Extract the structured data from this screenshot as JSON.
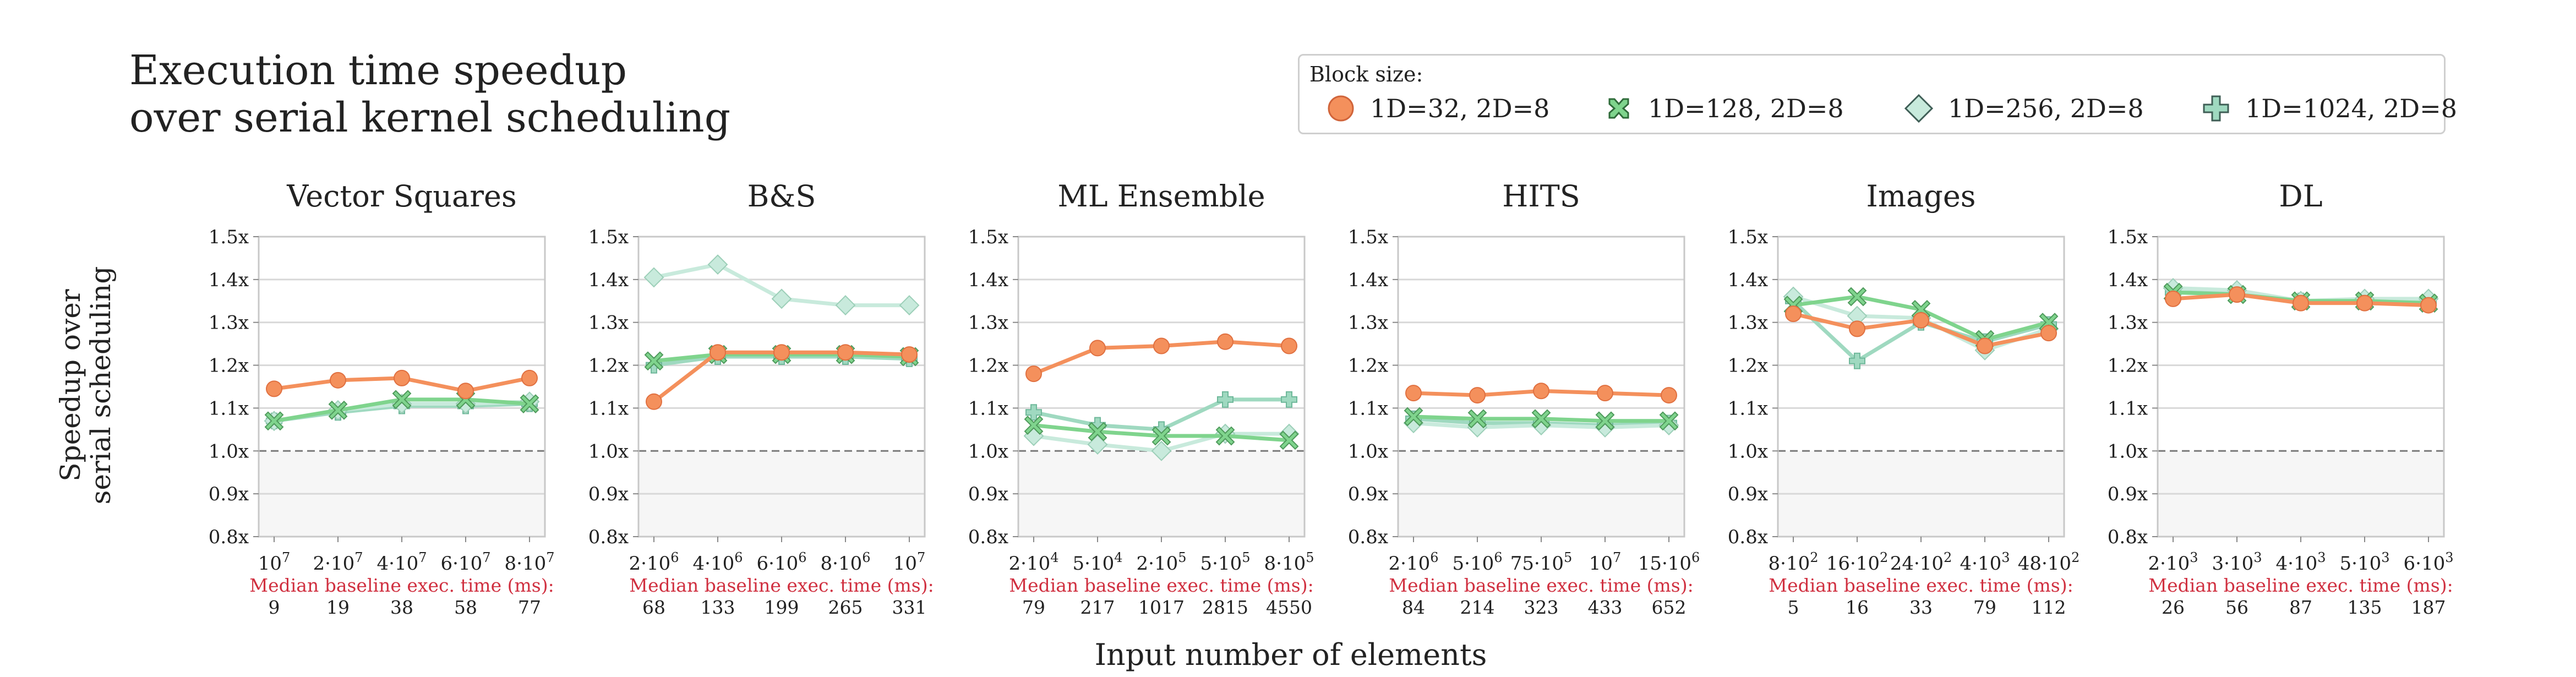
{
  "title_lines": [
    "Execution time speedup",
    "over serial kernel scheduling"
  ],
  "legend": {
    "title": "Block size:",
    "items": [
      {
        "label": "1D=32, 2D=8",
        "color": "#f4905c",
        "marker": "circle",
        "stroke": "#f4905c"
      },
      {
        "label": "1D=128, 2D=8",
        "color": "#7fd48d",
        "marker": "x",
        "stroke": "#2f6b3a"
      },
      {
        "label": "1D=256, 2D=8",
        "color": "#c8eadc",
        "marker": "diamond",
        "stroke": "#3f5e56"
      },
      {
        "label": "1D=1024, 2D=8",
        "color": "#9fd9c0",
        "marker": "plus",
        "stroke": "#3f5e56"
      }
    ]
  },
  "y_axis": {
    "label_lines": [
      "Speedup over",
      "serial scheduling"
    ],
    "ticks": [
      "1.5x",
      "1.4x",
      "1.3x",
      "1.2x",
      "1.1x",
      "1.0x",
      "0.9x",
      "0.8x"
    ],
    "tick_values": [
      1.5,
      1.4,
      1.3,
      1.2,
      1.1,
      1.0,
      0.9,
      0.8
    ],
    "ylim": [
      0.8,
      1.5
    ],
    "baseline": 1.0
  },
  "x_axis_label": "Input number of elements",
  "median_label": "Median baseline exec. time (ms):",
  "chart_data": [
    {
      "type": "line",
      "title": "Vector Squares",
      "categories": [
        "10^7",
        "2·10^7",
        "4·10^7",
        "6·10^7",
        "8·10^7"
      ],
      "median_times": [
        "9",
        "19",
        "38",
        "58",
        "77"
      ],
      "series": [
        {
          "name": "1D=32, 2D=8",
          "values": [
            1.145,
            1.165,
            1.17,
            1.14,
            1.17
          ]
        },
        {
          "name": "1D=128, 2D=8",
          "values": [
            1.07,
            1.095,
            1.12,
            1.12,
            1.11
          ]
        },
        {
          "name": "1D=256, 2D=8",
          "values": [
            1.07,
            1.095,
            1.11,
            1.11,
            1.115
          ]
        },
        {
          "name": "1D=1024, 2D=8",
          "values": [
            1.07,
            1.09,
            1.105,
            1.105,
            1.11
          ]
        }
      ]
    },
    {
      "type": "line",
      "title": "B&S",
      "categories": [
        "2·10^6",
        "4·10^6",
        "6·10^6",
        "8·10^6",
        "10^7"
      ],
      "median_times": [
        "68",
        "133",
        "199",
        "265",
        "331"
      ],
      "series": [
        {
          "name": "1D=32, 2D=8",
          "values": [
            1.115,
            1.23,
            1.23,
            1.23,
            1.225
          ]
        },
        {
          "name": "1D=128, 2D=8",
          "values": [
            1.21,
            1.225,
            1.225,
            1.225,
            1.22
          ]
        },
        {
          "name": "1D=256, 2D=8",
          "values": [
            1.405,
            1.435,
            1.355,
            1.34,
            1.34
          ]
        },
        {
          "name": "1D=1024, 2D=8",
          "values": [
            1.2,
            1.22,
            1.22,
            1.22,
            1.215
          ]
        }
      ]
    },
    {
      "type": "line",
      "title": "ML Ensemble",
      "categories": [
        "2·10^4",
        "5·10^4",
        "2·10^5",
        "5·10^5",
        "8·10^5"
      ],
      "median_times": [
        "79",
        "217",
        "1017",
        "2815",
        "4550"
      ],
      "series": [
        {
          "name": "1D=32, 2D=8",
          "values": [
            1.18,
            1.24,
            1.245,
            1.255,
            1.245
          ]
        },
        {
          "name": "1D=128, 2D=8",
          "values": [
            1.06,
            1.045,
            1.035,
            1.035,
            1.025
          ]
        },
        {
          "name": "1D=256, 2D=8",
          "values": [
            1.035,
            1.015,
            1.0,
            1.04,
            1.04
          ]
        },
        {
          "name": "1D=1024, 2D=8",
          "values": [
            1.09,
            1.06,
            1.05,
            1.12,
            1.12
          ]
        }
      ]
    },
    {
      "type": "line",
      "title": "HITS",
      "categories": [
        "2·10^6",
        "5·10^6",
        "75·10^5",
        "10^7",
        "15·10^6"
      ],
      "median_times": [
        "84",
        "214",
        "323",
        "433",
        "652"
      ],
      "series": [
        {
          "name": "1D=32, 2D=8",
          "values": [
            1.135,
            1.13,
            1.14,
            1.135,
            1.13
          ]
        },
        {
          "name": "1D=128, 2D=8",
          "values": [
            1.08,
            1.075,
            1.075,
            1.07,
            1.07
          ]
        },
        {
          "name": "1D=256, 2D=8",
          "values": [
            1.065,
            1.055,
            1.06,
            1.055,
            1.06
          ]
        },
        {
          "name": "1D=1024, 2D=8",
          "values": [
            1.075,
            1.065,
            1.065,
            1.06,
            1.065
          ]
        }
      ]
    },
    {
      "type": "line",
      "title": "Images",
      "categories": [
        "8·10^2",
        "16·10^2",
        "24·10^2",
        "4·10^3",
        "48·10^2"
      ],
      "median_times": [
        "5",
        "16",
        "33",
        "79",
        "112"
      ],
      "series": [
        {
          "name": "1D=32, 2D=8",
          "values": [
            1.32,
            1.285,
            1.305,
            1.245,
            1.275
          ]
        },
        {
          "name": "1D=128, 2D=8",
          "values": [
            1.34,
            1.36,
            1.33,
            1.26,
            1.3
          ]
        },
        {
          "name": "1D=256, 2D=8",
          "values": [
            1.36,
            1.315,
            1.31,
            1.235,
            1.285
          ]
        },
        {
          "name": "1D=1024, 2D=8",
          "values": [
            1.35,
            1.21,
            1.3,
            1.255,
            1.295
          ]
        }
      ]
    },
    {
      "type": "line",
      "title": "DL",
      "categories": [
        "2·10^3",
        "3·10^3",
        "4·10^3",
        "5·10^3",
        "6·10^3"
      ],
      "median_times": [
        "26",
        "56",
        "87",
        "135",
        "187"
      ],
      "series": [
        {
          "name": "1D=32, 2D=8",
          "values": [
            1.355,
            1.365,
            1.345,
            1.345,
            1.34
          ]
        },
        {
          "name": "1D=128, 2D=8",
          "values": [
            1.37,
            1.365,
            1.35,
            1.35,
            1.345
          ]
        },
        {
          "name": "1D=256, 2D=8",
          "values": [
            1.38,
            1.375,
            1.35,
            1.355,
            1.355
          ]
        },
        {
          "name": "1D=1024, 2D=8",
          "values": [
            1.37,
            1.37,
            1.35,
            1.35,
            1.35
          ]
        }
      ]
    }
  ]
}
